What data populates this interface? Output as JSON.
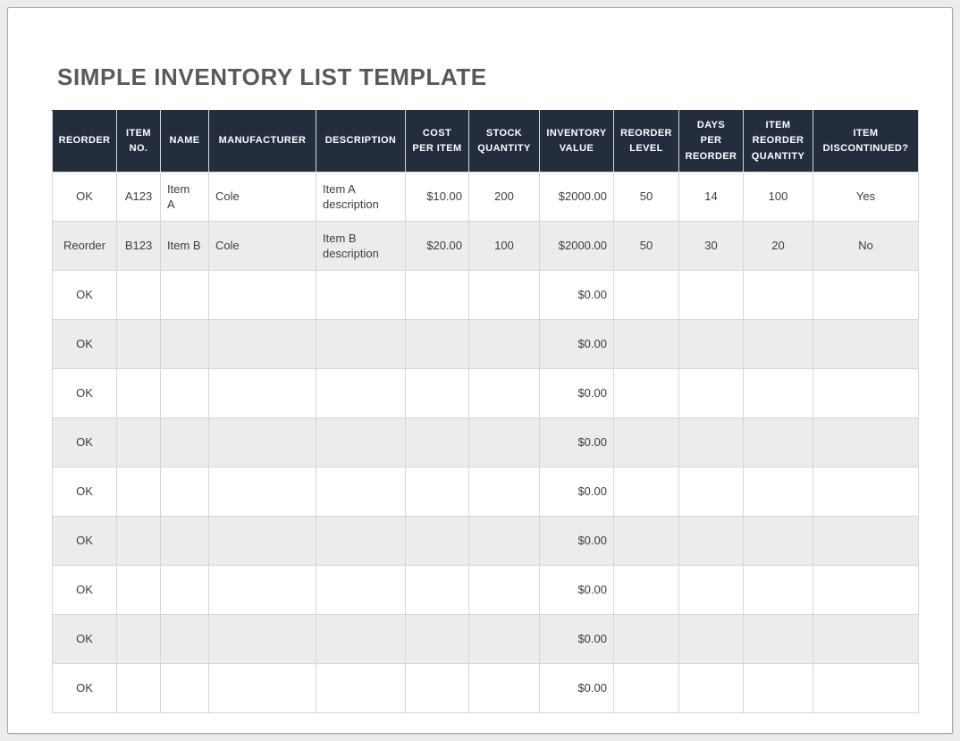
{
  "page": {
    "title": "SIMPLE INVENTORY LIST TEMPLATE",
    "colors": {
      "surround_bg": "#ECECEC",
      "page_border": "#A6A6A6",
      "title_text": "#58595B",
      "header_bg": "#232D3E",
      "header_text": "#FFFFFF",
      "row_alt_bg": "#ECECEC",
      "cell_border": "#D6D6D6",
      "cell_text": "#3D3D3D"
    }
  },
  "table": {
    "columns": [
      {
        "key": "reorder",
        "label": "REORDER",
        "align": "center",
        "width": 72
      },
      {
        "key": "item_no",
        "label": "ITEM\nNO.",
        "align": "center",
        "width": 49
      },
      {
        "key": "name",
        "label": "NAME",
        "align": "left",
        "width": 54
      },
      {
        "key": "manufacturer",
        "label": "MANUFACTURER",
        "align": "left",
        "width": 120
      },
      {
        "key": "description",
        "label": "DESCRIPTION",
        "align": "left",
        "width": 100
      },
      {
        "key": "cost_per_item",
        "label": "COST\nPER ITEM",
        "align": "right",
        "width": 71
      },
      {
        "key": "stock_quantity",
        "label": "STOCK\nQUANTITY",
        "align": "center",
        "width": 79
      },
      {
        "key": "inventory_value",
        "label": "INVENTORY\nVALUE",
        "align": "right",
        "width": 83
      },
      {
        "key": "reorder_level",
        "label": "REORDER\nLEVEL",
        "align": "center",
        "width": 73
      },
      {
        "key": "days_per_reorder",
        "label": "DAYS\nPER\nREORDER",
        "align": "center",
        "width": 72
      },
      {
        "key": "item_reorder_quantity",
        "label": "ITEM\nREORDER\nQUANTITY",
        "align": "center",
        "width": 78
      },
      {
        "key": "item_discontinued",
        "label": "ITEM\nDISCONTINUED?",
        "align": "center",
        "width": 118
      }
    ],
    "rows": [
      [
        "OK",
        "A123",
        "Item\nA",
        "Cole",
        "Item A description",
        "$10.00",
        "200",
        "$2000.00",
        "50",
        "14",
        "100",
        "Yes"
      ],
      [
        "Reorder",
        "B123",
        "Item B",
        "Cole",
        "Item B description",
        "$20.00",
        "100",
        "$2000.00",
        "50",
        "30",
        "20",
        "No"
      ],
      [
        "OK",
        "",
        "",
        "",
        "",
        "",
        "",
        "$0.00",
        "",
        "",
        "",
        ""
      ],
      [
        "OK",
        "",
        "",
        "",
        "",
        "",
        "",
        "$0.00",
        "",
        "",
        "",
        ""
      ],
      [
        "OK",
        "",
        "",
        "",
        "",
        "",
        "",
        "$0.00",
        "",
        "",
        "",
        ""
      ],
      [
        "OK",
        "",
        "",
        "",
        "",
        "",
        "",
        "$0.00",
        "",
        "",
        "",
        ""
      ],
      [
        "OK",
        "",
        "",
        "",
        "",
        "",
        "",
        "$0.00",
        "",
        "",
        "",
        ""
      ],
      [
        "OK",
        "",
        "",
        "",
        "",
        "",
        "",
        "$0.00",
        "",
        "",
        "",
        ""
      ],
      [
        "OK",
        "",
        "",
        "",
        "",
        "",
        "",
        "$0.00",
        "",
        "",
        "",
        ""
      ],
      [
        "OK",
        "",
        "",
        "",
        "",
        "",
        "",
        "$0.00",
        "",
        "",
        "",
        ""
      ],
      [
        "OK",
        "",
        "",
        "",
        "",
        "",
        "",
        "$0.00",
        "",
        "",
        "",
        ""
      ]
    ]
  }
}
